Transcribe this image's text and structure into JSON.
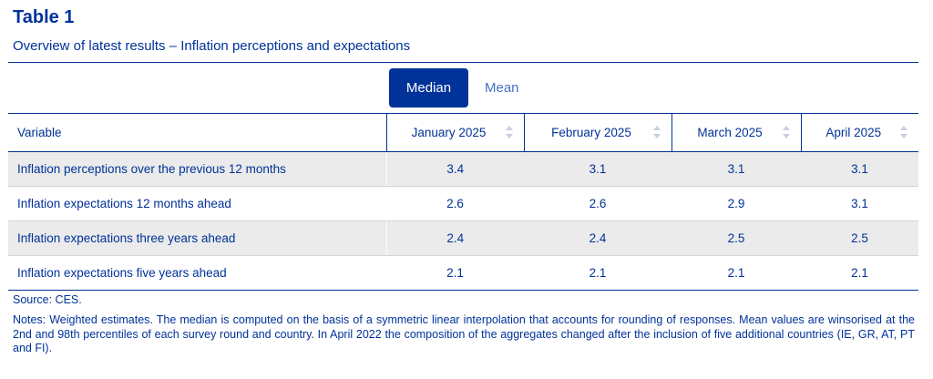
{
  "title": "Table 1",
  "subtitle": "Overview of latest results – Inflation perceptions and expectations",
  "tabs": [
    {
      "label": "Median",
      "active": true
    },
    {
      "label": "Mean",
      "active": false
    }
  ],
  "table": {
    "headers": [
      "Variable",
      "January 2025",
      "February 2025",
      "March 2025",
      "April 2025"
    ],
    "rows": [
      {
        "variable": "Inflation perceptions over the previous 12 months",
        "values": [
          "3.4",
          "3.1",
          "3.1",
          "3.1"
        ]
      },
      {
        "variable": "Inflation expectations 12 months ahead",
        "values": [
          "2.6",
          "2.6",
          "2.9",
          "3.1"
        ]
      },
      {
        "variable": "Inflation expectations three years ahead",
        "values": [
          "2.4",
          "2.4",
          "2.5",
          "2.5"
        ]
      },
      {
        "variable": "Inflation expectations five years ahead",
        "values": [
          "2.1",
          "2.1",
          "2.1",
          "2.1"
        ]
      }
    ]
  },
  "source": "Source: CES.",
  "notes": "Notes: Weighted estimates. The median is computed on the basis of a symmetric linear interpolation that accounts for rounding of responses. Mean values are winsorised at the 2nd and 98th percentiles of each survey round and country. In April 2022 the composition of the aggregates changed after the inclusion of five additional countries (IE, GR, AT, PT and FI).",
  "colors": {
    "primary": "#003299",
    "link": "#4472c4",
    "row_shade": "#ebebeb"
  }
}
